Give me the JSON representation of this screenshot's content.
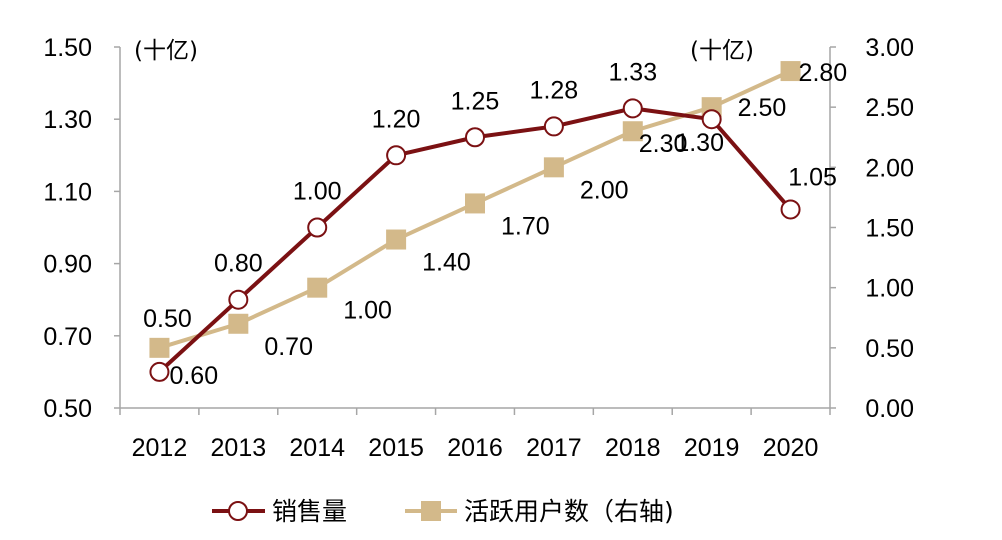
{
  "chart_data": {
    "type": "line",
    "categories": [
      "2012",
      "2013",
      "2014",
      "2015",
      "2016",
      "2017",
      "2018",
      "2019",
      "2020"
    ],
    "y_left": {
      "unit": "(十亿)",
      "range": [
        0.5,
        1.5
      ],
      "ticks": [
        "0.50",
        "0.70",
        "0.90",
        "1.10",
        "1.30",
        "1.50"
      ]
    },
    "y_right": {
      "unit": "(十亿)",
      "range": [
        0.0,
        3.0
      ],
      "ticks": [
        "0.00",
        "0.50",
        "1.00",
        "1.50",
        "2.00",
        "2.50",
        "3.00"
      ]
    },
    "series": [
      {
        "name": "销售量",
        "axis": "left",
        "color": "#7B1113",
        "marker": "circle",
        "values": [
          0.6,
          0.8,
          1.0,
          1.2,
          1.25,
          1.28,
          1.33,
          1.3,
          1.05
        ],
        "labels": [
          "0.60",
          "0.80",
          "1.00",
          "1.20",
          "1.25",
          "1.28",
          "1.33",
          "1.30",
          "1.05"
        ]
      },
      {
        "name": "活跃用户数（右轴)",
        "axis": "right",
        "color": "#D3B98A",
        "marker": "square",
        "values": [
          0.5,
          0.7,
          1.0,
          1.4,
          1.7,
          2.0,
          2.3,
          2.5,
          2.8
        ],
        "labels": [
          "0.50",
          "0.70",
          "1.00",
          "1.40",
          "1.70",
          "2.00",
          "2.30",
          "2.50",
          "2.80"
        ]
      }
    ],
    "grid": false,
    "legend": "bottom-center"
  }
}
